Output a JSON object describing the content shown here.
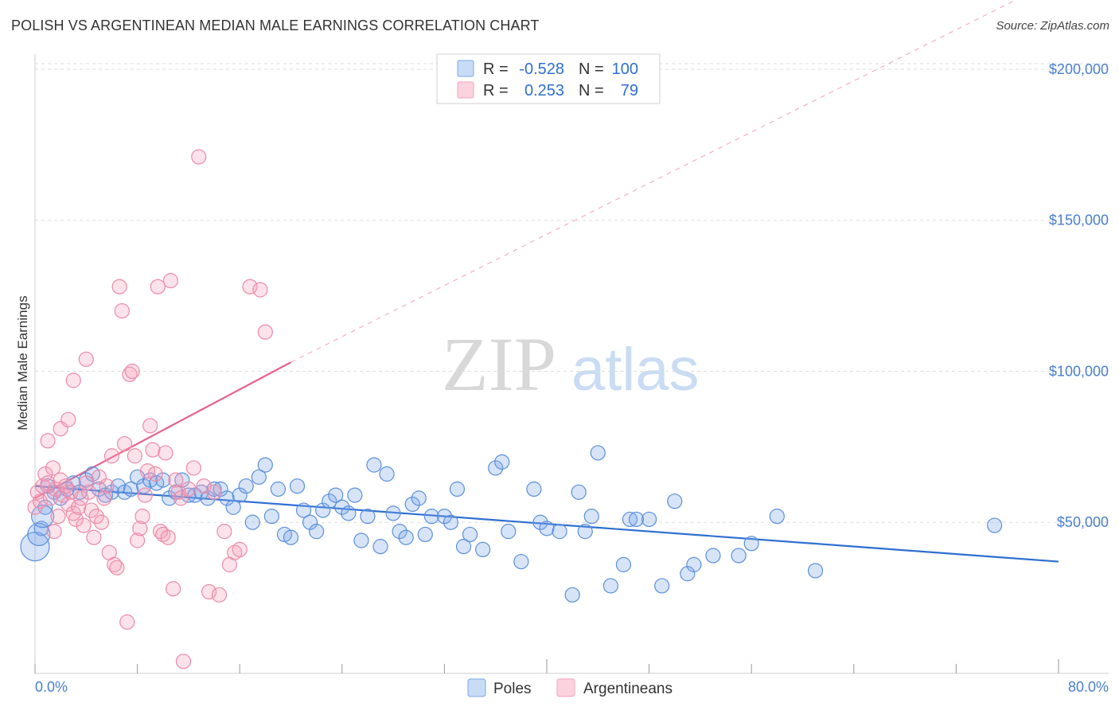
{
  "header": {
    "title": "POLISH VS ARGENTINEAN MEDIAN MALE EARNINGS CORRELATION CHART",
    "source": "Source: ZipAtlas.com"
  },
  "watermark": {
    "zip": "ZIP",
    "atlas": "atlas"
  },
  "legend_stats": [
    {
      "r_label": "R =",
      "r_value": "-0.528",
      "n_label": "N =",
      "n_value": "100",
      "color": "#7aa7e8"
    },
    {
      "r_label": "R =",
      "r_value": "0.253",
      "n_label": "N =",
      "n_value": "79",
      "color": "#f4a0b8"
    }
  ],
  "colors": {
    "poles": "#7aa7e8",
    "poles_line": "#2e6fd1",
    "argentineans": "#f4a0b8",
    "argentineans_line": "#e8628e",
    "value_text": "#2e6fd1",
    "grid": "#dddddd"
  },
  "chart_data": {
    "type": "scatter",
    "title": "POLISH VS ARGENTINEAN MEDIAN MALE EARNINGS CORRELATION CHART",
    "xlabel": "",
    "ylabel": "Median Male Earnings",
    "xlim": [
      0,
      80
    ],
    "ylim": [
      0,
      205000
    ],
    "x_tick_labels": [
      "0.0%",
      "80.0%"
    ],
    "y_ticks": [
      50000,
      100000,
      150000,
      200000
    ],
    "y_tick_labels": [
      "$50,000",
      "$100,000",
      "$150,000",
      "$200,000"
    ],
    "grid": true,
    "legend_position": "bottom",
    "series": [
      {
        "name": "Poles",
        "color": "#7aa7e8",
        "trend": {
          "x": [
            0,
            80
          ],
          "y": [
            62000,
            37000
          ]
        },
        "points": [
          [
            0.0,
            42000
          ],
          [
            0.5,
            48000
          ],
          [
            0.8,
            55000
          ],
          [
            1.0,
            62000
          ],
          [
            1.5,
            60000
          ],
          [
            2.0,
            58000
          ],
          [
            2.5,
            61000
          ],
          [
            3.0,
            63000
          ],
          [
            3.5,
            60000
          ],
          [
            4.0,
            64000
          ],
          [
            4.5,
            66000
          ],
          [
            5.0,
            61000
          ],
          [
            5.5,
            59000
          ],
          [
            6.0,
            60000
          ],
          [
            6.5,
            62000
          ],
          [
            7.0,
            60000
          ],
          [
            7.5,
            61000
          ],
          [
            8.0,
            65000
          ],
          [
            8.5,
            62000
          ],
          [
            9.0,
            64000
          ],
          [
            9.5,
            63000
          ],
          [
            10.0,
            64000
          ],
          [
            10.5,
            58000
          ],
          [
            11.0,
            60000
          ],
          [
            11.5,
            64000
          ],
          [
            12.0,
            59000
          ],
          [
            12.5,
            59000
          ],
          [
            13.0,
            60000
          ],
          [
            13.5,
            58000
          ],
          [
            14.0,
            61000
          ],
          [
            14.5,
            61000
          ],
          [
            15.0,
            58000
          ],
          [
            15.5,
            55000
          ],
          [
            16.0,
            59000
          ],
          [
            16.5,
            62000
          ],
          [
            17.0,
            50000
          ],
          [
            17.5,
            65000
          ],
          [
            18.0,
            69000
          ],
          [
            18.5,
            52000
          ],
          [
            19.0,
            61000
          ],
          [
            19.5,
            46000
          ],
          [
            20.0,
            45000
          ],
          [
            20.5,
            62000
          ],
          [
            21.0,
            54000
          ],
          [
            21.5,
            50000
          ],
          [
            22.0,
            47000
          ],
          [
            22.5,
            54000
          ],
          [
            23.0,
            57000
          ],
          [
            23.5,
            59000
          ],
          [
            24.0,
            55000
          ],
          [
            24.5,
            53000
          ],
          [
            25.0,
            59000
          ],
          [
            25.5,
            44000
          ],
          [
            26.0,
            52000
          ],
          [
            26.5,
            69000
          ],
          [
            27.0,
            42000
          ],
          [
            27.5,
            66000
          ],
          [
            28.0,
            53000
          ],
          [
            28.5,
            47000
          ],
          [
            29.0,
            45000
          ],
          [
            29.5,
            56000
          ],
          [
            30.0,
            58000
          ],
          [
            30.5,
            46000
          ],
          [
            31.0,
            52000
          ],
          [
            32.0,
            52000
          ],
          [
            32.5,
            50000
          ],
          [
            33.0,
            61000
          ],
          [
            33.5,
            42000
          ],
          [
            34.0,
            46000
          ],
          [
            35.0,
            41000
          ],
          [
            36.0,
            68000
          ],
          [
            36.5,
            70000
          ],
          [
            37.0,
            47000
          ],
          [
            38.0,
            37000
          ],
          [
            39.0,
            61000
          ],
          [
            39.5,
            50000
          ],
          [
            40.0,
            48000
          ],
          [
            41.0,
            47000
          ],
          [
            42.0,
            26000
          ],
          [
            42.5,
            60000
          ],
          [
            43.0,
            47000
          ],
          [
            43.5,
            52000
          ],
          [
            44.0,
            73000
          ],
          [
            45.0,
            29000
          ],
          [
            46.0,
            36000
          ],
          [
            46.5,
            51000
          ],
          [
            47.0,
            51000
          ],
          [
            48.0,
            51000
          ],
          [
            49.0,
            29000
          ],
          [
            50.0,
            57000
          ],
          [
            51.0,
            33000
          ],
          [
            51.5,
            36000
          ],
          [
            53.0,
            39000
          ],
          [
            55.0,
            39000
          ],
          [
            56.0,
            43000
          ],
          [
            58.0,
            52000
          ],
          [
            61.0,
            34000
          ],
          [
            75.0,
            49000
          ],
          [
            0.3,
            46000
          ],
          [
            0.6,
            52000
          ]
        ]
      },
      {
        "name": "Argentineans",
        "color": "#f4a0b8",
        "trend": {
          "x": [
            0,
            20
          ],
          "y": [
            58000,
            103000
          ],
          "x_ext": [
            20,
            80
          ],
          "y_ext": [
            103000,
            230000
          ]
        },
        "points": [
          [
            0.0,
            55000
          ],
          [
            0.2,
            60000
          ],
          [
            0.4,
            57000
          ],
          [
            0.6,
            62000
          ],
          [
            0.8,
            66000
          ],
          [
            1.0,
            63000
          ],
          [
            1.2,
            58000
          ],
          [
            1.4,
            68000
          ],
          [
            1.6,
            61000
          ],
          [
            1.8,
            52000
          ],
          [
            2.0,
            64000
          ],
          [
            2.2,
            59000
          ],
          [
            2.4,
            62000
          ],
          [
            2.6,
            56000
          ],
          [
            2.8,
            60000
          ],
          [
            3.0,
            53000
          ],
          [
            3.2,
            51000
          ],
          [
            3.4,
            55000
          ],
          [
            3.6,
            58000
          ],
          [
            3.8,
            49000
          ],
          [
            4.0,
            63000
          ],
          [
            4.2,
            60000
          ],
          [
            4.4,
            54000
          ],
          [
            4.6,
            45000
          ],
          [
            4.8,
            52000
          ],
          [
            5.0,
            65000
          ],
          [
            5.2,
            50000
          ],
          [
            5.4,
            58000
          ],
          [
            5.6,
            62000
          ],
          [
            5.8,
            40000
          ],
          [
            6.0,
            72000
          ],
          [
            6.2,
            36000
          ],
          [
            6.4,
            35000
          ],
          [
            6.6,
            128000
          ],
          [
            6.8,
            120000
          ],
          [
            7.0,
            76000
          ],
          [
            7.2,
            17000
          ],
          [
            7.4,
            99000
          ],
          [
            7.6,
            100000
          ],
          [
            7.8,
            72000
          ],
          [
            8.0,
            44000
          ],
          [
            8.2,
            48000
          ],
          [
            8.4,
            52000
          ],
          [
            8.6,
            59000
          ],
          [
            8.8,
            67000
          ],
          [
            9.0,
            82000
          ],
          [
            9.2,
            74000
          ],
          [
            9.4,
            66000
          ],
          [
            9.6,
            128000
          ],
          [
            9.8,
            47000
          ],
          [
            10.0,
            46000
          ],
          [
            10.2,
            73000
          ],
          [
            10.4,
            45000
          ],
          [
            10.6,
            130000
          ],
          [
            10.8,
            28000
          ],
          [
            11.0,
            64000
          ],
          [
            11.2,
            60000
          ],
          [
            11.4,
            58000
          ],
          [
            11.6,
            4000
          ],
          [
            12.0,
            61000
          ],
          [
            12.4,
            68000
          ],
          [
            12.8,
            171000
          ],
          [
            13.2,
            62000
          ],
          [
            13.6,
            27000
          ],
          [
            14.0,
            60000
          ],
          [
            14.4,
            26000
          ],
          [
            14.8,
            47000
          ],
          [
            15.2,
            36000
          ],
          [
            15.6,
            40000
          ],
          [
            16.0,
            41000
          ],
          [
            16.8,
            128000
          ],
          [
            17.6,
            127000
          ],
          [
            18.0,
            113000
          ],
          [
            1.0,
            77000
          ],
          [
            2.0,
            81000
          ],
          [
            2.6,
            84000
          ],
          [
            3.0,
            97000
          ],
          [
            4.0,
            104000
          ],
          [
            1.5,
            47000
          ]
        ]
      }
    ]
  }
}
